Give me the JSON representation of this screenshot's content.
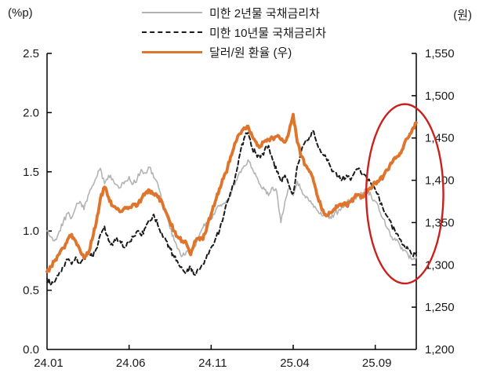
{
  "chart_data": {
    "type": "line",
    "title": "",
    "left_axis": {
      "unit_label": "(%p)",
      "min": 0.0,
      "max": 2.5,
      "tick_values": [
        0.0,
        0.5,
        1.0,
        1.5,
        2.0,
        2.5
      ],
      "tick_labels": [
        "0.0",
        "0.5",
        "1.0",
        "1.5",
        "2.0",
        "2.5"
      ]
    },
    "right_axis": {
      "unit_label": "(원)",
      "min": 1200,
      "max": 1550,
      "tick_values": [
        1200,
        1250,
        1300,
        1350,
        1400,
        1450,
        1500,
        1550
      ],
      "tick_labels": [
        "1,200",
        "1,250",
        "1,300",
        "1,350",
        "1,400",
        "1,450",
        "1,500",
        "1,550"
      ]
    },
    "x_axis": {
      "min_months": 0,
      "max_months": 22.5,
      "step_months": 0.25,
      "tick_months": [
        0,
        5,
        10,
        15,
        20
      ],
      "tick_labels": [
        "24.01",
        "24.06",
        "24.11",
        "25.04",
        "25.09"
      ]
    },
    "grid": "off",
    "legend_position": "top-center",
    "series": [
      {
        "name": "미한 2년물 국채금리차",
        "axis": "left",
        "line_style": "solid",
        "color": "#b3b3b3",
        "stroke_width": 1.6,
        "values": [
          1.0,
          0.95,
          0.93,
          1.0,
          1.08,
          1.15,
          1.11,
          1.2,
          1.25,
          1.18,
          1.3,
          1.38,
          1.45,
          1.53,
          1.4,
          1.47,
          1.44,
          1.39,
          1.37,
          1.42,
          1.46,
          1.4,
          1.44,
          1.52,
          1.49,
          1.54,
          1.45,
          1.4,
          1.25,
          1.15,
          1.02,
          0.92,
          0.85,
          0.79,
          0.83,
          0.8,
          0.87,
          0.95,
          1.03,
          1.07,
          1.1,
          1.16,
          1.21,
          1.23,
          1.26,
          1.33,
          1.42,
          1.5,
          1.55,
          1.6,
          1.53,
          1.46,
          1.39,
          1.35,
          1.3,
          1.37,
          1.33,
          1.07,
          1.25,
          1.36,
          1.3,
          1.42,
          1.35,
          1.28,
          1.25,
          1.2,
          1.17,
          1.13,
          1.15,
          1.12,
          1.14,
          1.17,
          1.2,
          1.24,
          1.26,
          1.28,
          1.3,
          1.32,
          1.35,
          1.3,
          1.25,
          1.17,
          1.1,
          1.02,
          0.95,
          0.92,
          0.88,
          0.84,
          0.8,
          0.76,
          0.78
        ]
      },
      {
        "name": "미한 10년물 국채금리차",
        "axis": "left",
        "line_style": "dashed",
        "color": "#1a1a1a",
        "stroke_width": 2,
        "values": [
          0.6,
          0.55,
          0.58,
          0.65,
          0.7,
          0.76,
          0.72,
          0.78,
          0.72,
          0.77,
          0.82,
          0.78,
          0.85,
          0.97,
          1.04,
          0.92,
          0.88,
          0.94,
          0.9,
          0.86,
          0.9,
          0.95,
          1.0,
          0.96,
          1.03,
          1.08,
          1.14,
          1.05,
          0.98,
          0.92,
          0.85,
          0.78,
          0.72,
          0.68,
          0.65,
          0.7,
          0.63,
          0.68,
          0.72,
          0.8,
          0.86,
          0.93,
          1.0,
          1.12,
          1.25,
          1.35,
          1.48,
          1.65,
          1.78,
          1.83,
          1.7,
          1.65,
          1.62,
          1.68,
          1.72,
          1.6,
          1.5,
          1.42,
          1.47,
          1.38,
          1.32,
          1.55,
          1.68,
          1.76,
          1.8,
          1.84,
          1.72,
          1.66,
          1.62,
          1.55,
          1.5,
          1.46,
          1.44,
          1.47,
          1.43,
          1.5,
          1.53,
          1.47,
          1.44,
          1.4,
          1.35,
          1.27,
          1.18,
          1.12,
          1.05,
          0.98,
          0.93,
          0.88,
          0.85,
          0.8,
          0.82
        ]
      },
      {
        "name": "달러/원 환율 (우)",
        "axis": "right",
        "line_style": "solid",
        "color": "#df752c",
        "stroke_width": 3.8,
        "values": [
          1292,
          1298,
          1306,
          1313,
          1320,
          1330,
          1336,
          1328,
          1318,
          1308,
          1313,
          1330,
          1350,
          1378,
          1392,
          1380,
          1370,
          1366,
          1363,
          1368,
          1368,
          1372,
          1370,
          1378,
          1385,
          1388,
          1384,
          1380,
          1375,
          1362,
          1350,
          1340,
          1332,
          1328,
          1325,
          1312,
          1328,
          1332,
          1330,
          1345,
          1360,
          1375,
          1390,
          1402,
          1415,
          1430,
          1445,
          1455,
          1462,
          1464,
          1452,
          1445,
          1440,
          1446,
          1448,
          1450,
          1452,
          1448,
          1445,
          1458,
          1478,
          1445,
          1428,
          1418,
          1410,
          1398,
          1380,
          1365,
          1358,
          1362,
          1366,
          1370,
          1372,
          1370,
          1375,
          1380,
          1383,
          1380,
          1386,
          1390,
          1397,
          1400,
          1405,
          1412,
          1420,
          1426,
          1432,
          1442,
          1450,
          1460,
          1468
        ]
      }
    ],
    "annotations": [
      {
        "shape": "ellipse",
        "color": "#c9201d",
        "stroke_width": 2.4,
        "center_month": 21.8,
        "center_value_right": 1384,
        "radius_months": 2.35,
        "radius_value_right": 106
      }
    ]
  }
}
